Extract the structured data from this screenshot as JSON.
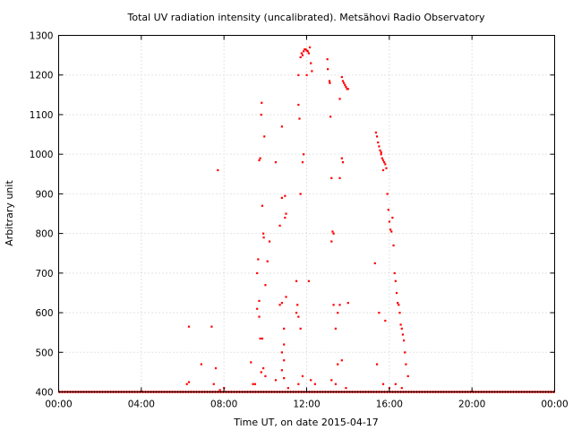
{
  "chart_data": {
    "type": "scatter",
    "title": "Total UV radiation intensity (uncalibrated). Metsähovi Radio Observatory",
    "xlabel": "Time UT, on date 2015-04-17",
    "ylabel": "Arbitrary unit",
    "xlim": [
      0,
      24
    ],
    "ylim": [
      400,
      1300
    ],
    "x_unit": "hours UT",
    "x_ticks": [
      {
        "value": 0,
        "label": "00:00"
      },
      {
        "value": 4,
        "label": "04:00"
      },
      {
        "value": 8,
        "label": "08:00"
      },
      {
        "value": 12,
        "label": "12:00"
      },
      {
        "value": 16,
        "label": "16:00"
      },
      {
        "value": 20,
        "label": "20:00"
      },
      {
        "value": 24,
        "label": "00:00"
      }
    ],
    "y_ticks": [
      400,
      500,
      600,
      700,
      800,
      900,
      1000,
      1100,
      1200,
      1300
    ],
    "grid": true,
    "marker_color": "#ff0000",
    "series": [
      {
        "baseline": {
          "from": 0,
          "to": 24,
          "value": 400
        },
        "points": [
          [
            6.3,
            565
          ],
          [
            6.2,
            420
          ],
          [
            6.3,
            425
          ],
          [
            6.9,
            470
          ],
          [
            7.4,
            565
          ],
          [
            7.6,
            460
          ],
          [
            7.7,
            960
          ],
          [
            7.5,
            420
          ],
          [
            7.8,
            405
          ],
          [
            8.0,
            410
          ],
          [
            9.3,
            475
          ],
          [
            9.4,
            420
          ],
          [
            9.6,
            700
          ],
          [
            9.65,
            735
          ],
          [
            9.7,
            985
          ],
          [
            9.75,
            990
          ],
          [
            9.7,
            630
          ],
          [
            9.8,
            1100
          ],
          [
            9.82,
            1130
          ],
          [
            9.85,
            870
          ],
          [
            9.9,
            800
          ],
          [
            9.92,
            790
          ],
          [
            9.95,
            1045
          ],
          [
            10.0,
            670
          ],
          [
            10.1,
            730
          ],
          [
            9.75,
            535
          ],
          [
            9.85,
            535
          ],
          [
            9.7,
            590
          ],
          [
            9.6,
            610
          ],
          [
            9.5,
            420
          ],
          [
            9.8,
            450
          ],
          [
            9.9,
            460
          ],
          [
            10.0,
            440
          ],
          [
            10.2,
            780
          ],
          [
            10.5,
            980
          ],
          [
            10.8,
            1070
          ],
          [
            10.7,
            820
          ],
          [
            10.8,
            890
          ],
          [
            10.95,
            895
          ],
          [
            11.0,
            850
          ],
          [
            10.95,
            840
          ],
          [
            10.8,
            625
          ],
          [
            10.7,
            620
          ],
          [
            11.0,
            640
          ],
          [
            10.9,
            560
          ],
          [
            10.9,
            520
          ],
          [
            10.8,
            500
          ],
          [
            10.9,
            480
          ],
          [
            10.8,
            455
          ],
          [
            10.9,
            435
          ],
          [
            11.1,
            410
          ],
          [
            10.5,
            430
          ],
          [
            11.5,
            680
          ],
          [
            11.55,
            620
          ],
          [
            11.6,
            1125
          ],
          [
            11.65,
            1090
          ],
          [
            11.7,
            900
          ],
          [
            11.8,
            980
          ],
          [
            11.85,
            1000
          ],
          [
            11.6,
            1200
          ],
          [
            11.7,
            1245
          ],
          [
            11.75,
            1255
          ],
          [
            11.8,
            1250
          ],
          [
            11.85,
            1260
          ],
          [
            11.9,
            1265
          ],
          [
            11.95,
            1265
          ],
          [
            12.0,
            1262
          ],
          [
            12.05,
            1260
          ],
          [
            12.1,
            1255
          ],
          [
            12.15,
            1270
          ],
          [
            12.2,
            1230
          ],
          [
            12.25,
            1210
          ],
          [
            12.0,
            1200
          ],
          [
            12.1,
            680
          ],
          [
            11.6,
            590
          ],
          [
            11.5,
            600
          ],
          [
            11.7,
            560
          ],
          [
            11.8,
            440
          ],
          [
            11.6,
            420
          ],
          [
            12.2,
            430
          ],
          [
            12.4,
            420
          ],
          [
            13.0,
            1240
          ],
          [
            13.02,
            1215
          ],
          [
            13.1,
            1185
          ],
          [
            13.12,
            1180
          ],
          [
            13.15,
            1095
          ],
          [
            13.2,
            940
          ],
          [
            13.25,
            805
          ],
          [
            13.3,
            800
          ],
          [
            13.2,
            780
          ],
          [
            13.3,
            620
          ],
          [
            13.4,
            560
          ],
          [
            13.5,
            600
          ],
          [
            13.6,
            1140
          ],
          [
            13.7,
            1195
          ],
          [
            13.75,
            1185
          ],
          [
            13.8,
            1180
          ],
          [
            13.85,
            1175
          ],
          [
            13.9,
            1170
          ],
          [
            13.95,
            1165
          ],
          [
            14.0,
            1165
          ],
          [
            13.7,
            990
          ],
          [
            13.75,
            980
          ],
          [
            13.6,
            940
          ],
          [
            13.6,
            620
          ],
          [
            13.7,
            480
          ],
          [
            13.5,
            470
          ],
          [
            14.0,
            625
          ],
          [
            13.2,
            430
          ],
          [
            13.4,
            420
          ],
          [
            13.9,
            410
          ],
          [
            15.3,
            725
          ],
          [
            15.35,
            1055
          ],
          [
            15.4,
            1045
          ],
          [
            15.45,
            1030
          ],
          [
            15.5,
            1020
          ],
          [
            15.55,
            1010
          ],
          [
            15.6,
            1005
          ],
          [
            15.65,
            990
          ],
          [
            15.7,
            985
          ],
          [
            15.75,
            980
          ],
          [
            15.8,
            975
          ],
          [
            15.85,
            965
          ],
          [
            15.9,
            900
          ],
          [
            15.95,
            860
          ],
          [
            16.0,
            830
          ],
          [
            16.05,
            810
          ],
          [
            16.1,
            805
          ],
          [
            16.15,
            840
          ],
          [
            16.2,
            770
          ],
          [
            16.25,
            700
          ],
          [
            16.3,
            680
          ],
          [
            16.35,
            650
          ],
          [
            16.4,
            625
          ],
          [
            16.45,
            620
          ],
          [
            16.5,
            600
          ],
          [
            16.55,
            570
          ],
          [
            16.6,
            560
          ],
          [
            16.65,
            545
          ],
          [
            16.7,
            530
          ],
          [
            16.75,
            500
          ],
          [
            16.8,
            470
          ],
          [
            16.9,
            440
          ],
          [
            15.7,
            960
          ],
          [
            15.6,
            1000
          ],
          [
            15.5,
            600
          ],
          [
            15.8,
            580
          ],
          [
            15.7,
            420
          ],
          [
            16.0,
            410
          ],
          [
            16.3,
            420
          ],
          [
            16.6,
            410
          ],
          [
            15.4,
            470
          ]
        ]
      }
    ]
  }
}
